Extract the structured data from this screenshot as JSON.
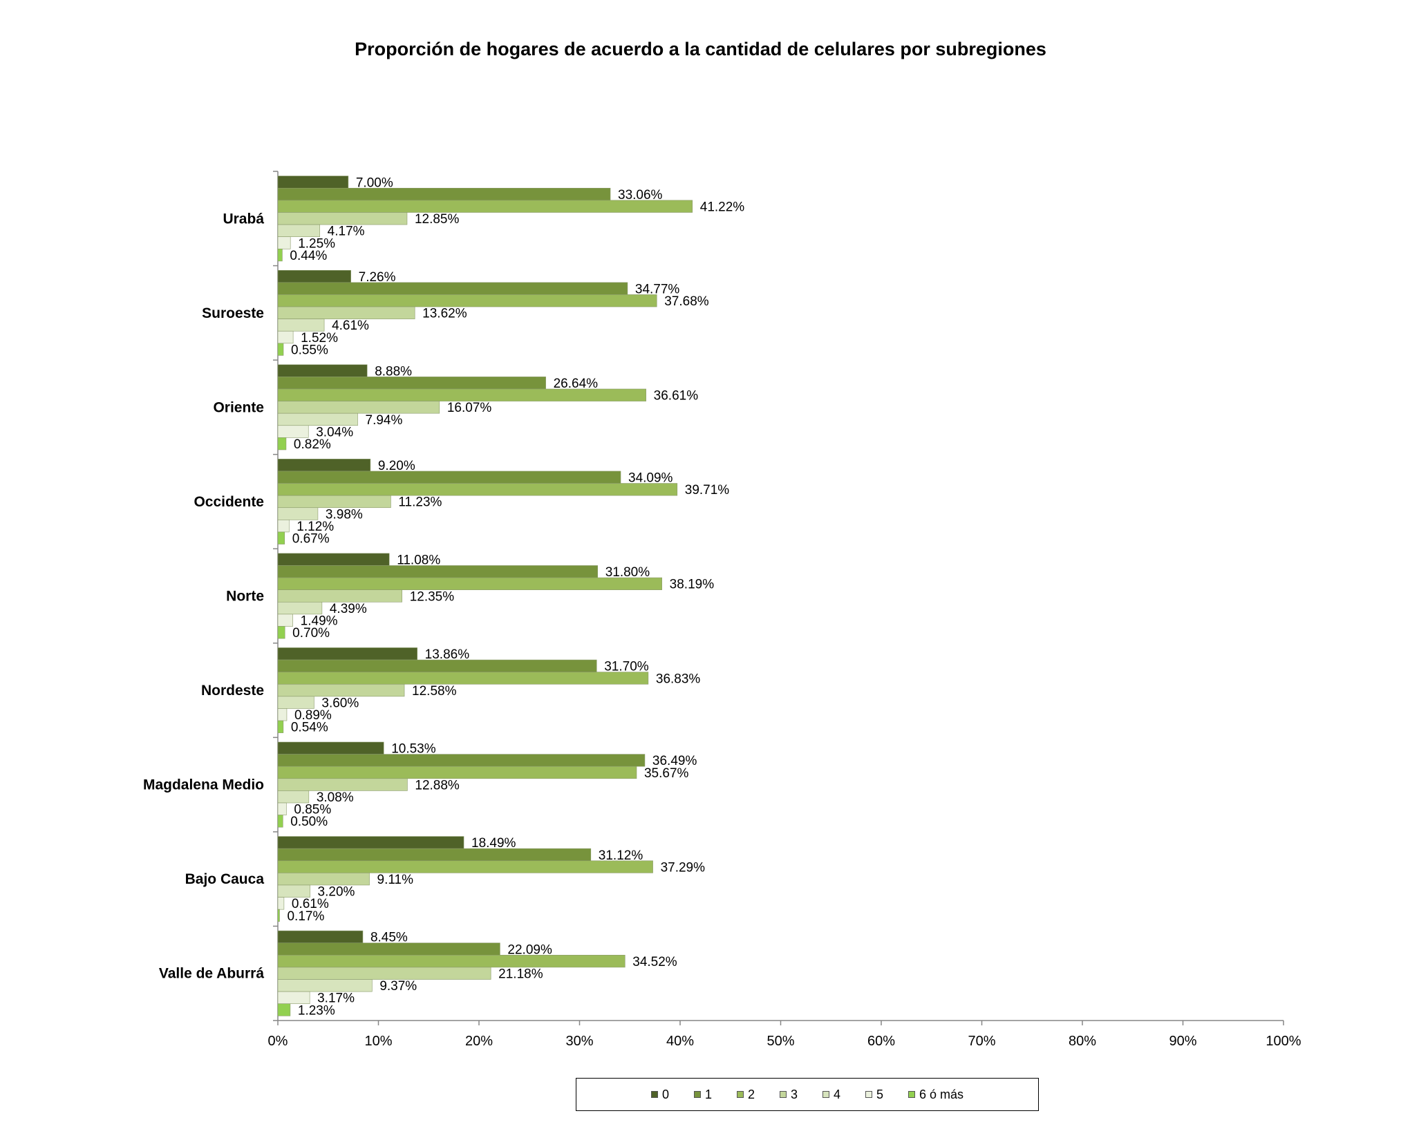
{
  "chart_data": {
    "type": "bar",
    "orientation": "horizontal",
    "title": "Proporción de hogares de acuerdo a la cantidad de  celulares por subregiones",
    "categories": [
      "Urabá",
      "Suroeste",
      "Oriente",
      "Occidente",
      "Norte",
      "Nordeste",
      "Magdalena Medio",
      "Bajo Cauca",
      "Valle de Aburrá"
    ],
    "series": [
      {
        "name": "0",
        "color": "#4f6228",
        "values": [
          7.0,
          7.26,
          8.88,
          9.2,
          11.08,
          13.86,
          10.53,
          18.49,
          8.45
        ]
      },
      {
        "name": "1",
        "color": "#77933c",
        "values": [
          33.06,
          34.77,
          26.64,
          34.09,
          31.8,
          31.7,
          36.49,
          31.12,
          22.09
        ]
      },
      {
        "name": "2",
        "color": "#9bbb59",
        "values": [
          41.22,
          37.68,
          36.61,
          39.71,
          38.19,
          36.83,
          35.67,
          37.29,
          34.52
        ]
      },
      {
        "name": "3",
        "color": "#c3d69b",
        "values": [
          12.85,
          13.62,
          16.07,
          11.23,
          12.35,
          12.58,
          12.88,
          9.11,
          21.18
        ]
      },
      {
        "name": "4",
        "color": "#d7e4bd",
        "values": [
          4.17,
          4.61,
          7.94,
          3.98,
          4.39,
          3.6,
          3.08,
          3.2,
          9.37
        ]
      },
      {
        "name": "5",
        "color": "#ebf1de",
        "values": [
          1.25,
          1.52,
          3.04,
          1.12,
          1.49,
          0.89,
          0.85,
          0.61,
          3.17
        ]
      },
      {
        "name": "6 ó más",
        "color": "#92d050",
        "values": [
          0.44,
          0.55,
          0.82,
          0.67,
          0.7,
          0.54,
          0.5,
          0.17,
          1.23
        ]
      }
    ],
    "xlim": [
      0,
      100
    ],
    "x_ticks": [
      "0%",
      "10%",
      "20%",
      "30%",
      "40%",
      "50%",
      "60%",
      "70%",
      "80%",
      "90%",
      "100%"
    ],
    "value_suffix": "%",
    "grid": false,
    "legend": "bottom"
  }
}
